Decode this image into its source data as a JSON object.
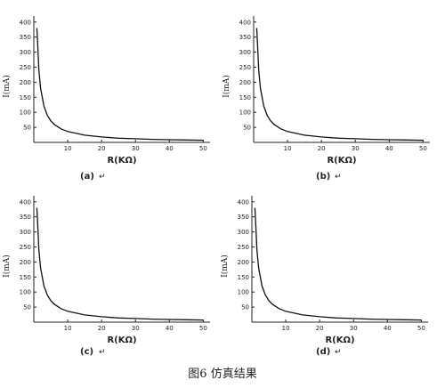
{
  "figure_caption": "图6 仿真结果",
  "chart_data": [
    {
      "type": "line",
      "panel_label": "(a)",
      "panel_mark": "↵",
      "xlabel": "R(KΩ)",
      "ylabel": "I(mA)",
      "xlim": [
        0,
        52
      ],
      "ylim": [
        0,
        420
      ],
      "xticks": [
        10,
        20,
        30,
        40,
        50
      ],
      "yticks": [
        50,
        100,
        150,
        200,
        250,
        300,
        350,
        400
      ],
      "series": [
        {
          "x": [
            0.9,
            1,
            1.5,
            2,
            3,
            4,
            5,
            6,
            8,
            10,
            15,
            20,
            25,
            30,
            35,
            40,
            45,
            50
          ],
          "values": [
            380,
            360,
            240,
            180,
            120,
            90,
            72,
            60,
            45,
            36,
            24,
            18,
            14,
            12,
            10,
            9,
            8,
            7
          ]
        }
      ]
    },
    {
      "type": "line",
      "panel_label": "(b)",
      "panel_mark": "↵",
      "xlabel": "R(KΩ)",
      "ylabel": "I(mA)",
      "xlim": [
        0,
        52
      ],
      "ylim": [
        0,
        420
      ],
      "xticks": [
        10,
        20,
        30,
        40,
        50
      ],
      "yticks": [
        50,
        100,
        150,
        200,
        250,
        300,
        350,
        400
      ],
      "series": [
        {
          "x": [
            0.9,
            1,
            1.5,
            2,
            3,
            4,
            5,
            6,
            8,
            10,
            15,
            20,
            25,
            30,
            35,
            40,
            45,
            50
          ],
          "values": [
            380,
            360,
            240,
            180,
            120,
            90,
            72,
            60,
            45,
            36,
            24,
            18,
            14,
            12,
            10,
            9,
            8,
            7
          ]
        }
      ]
    },
    {
      "type": "line",
      "panel_label": "(c)",
      "panel_mark": "↵",
      "xlabel": "R(KΩ)",
      "ylabel": "I(mA)",
      "xlim": [
        0,
        52
      ],
      "ylim": [
        0,
        420
      ],
      "xticks": [
        10,
        20,
        30,
        40,
        50
      ],
      "yticks": [
        50,
        100,
        150,
        200,
        250,
        300,
        350,
        400
      ],
      "series": [
        {
          "x": [
            0.9,
            1,
            1.5,
            2,
            3,
            4,
            5,
            6,
            8,
            10,
            15,
            20,
            25,
            30,
            35,
            40,
            45,
            50
          ],
          "values": [
            380,
            360,
            240,
            180,
            120,
            90,
            72,
            60,
            45,
            36,
            24,
            18,
            14,
            12,
            10,
            9,
            8,
            7
          ]
        }
      ]
    },
    {
      "type": "line",
      "panel_label": "(d)",
      "panel_mark": "↵",
      "xlabel": "R(KΩ)",
      "ylabel": "I(mA)",
      "xlim": [
        0,
        52
      ],
      "ylim": [
        0,
        420
      ],
      "xticks": [
        10,
        20,
        30,
        40,
        50
      ],
      "yticks": [
        50,
        100,
        150,
        200,
        250,
        300,
        350,
        400
      ],
      "series": [
        {
          "x": [
            0.9,
            1,
            1.5,
            2,
            3,
            4,
            5,
            6,
            8,
            10,
            15,
            20,
            25,
            30,
            35,
            40,
            45,
            50
          ],
          "values": [
            380,
            360,
            240,
            180,
            120,
            90,
            72,
            60,
            45,
            36,
            24,
            18,
            14,
            12,
            10,
            9,
            8,
            7
          ]
        }
      ]
    }
  ]
}
